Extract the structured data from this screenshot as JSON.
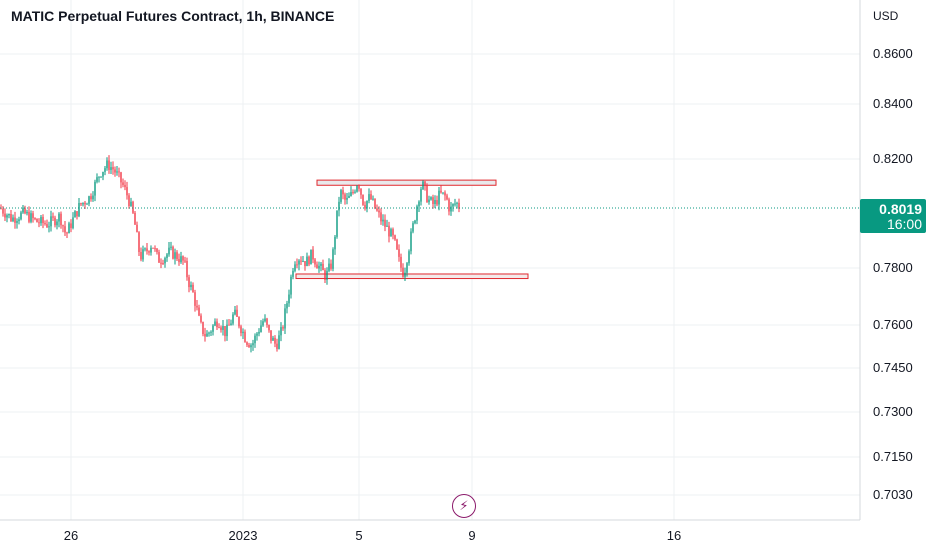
{
  "header": {
    "title": "MATIC Perpetual Futures Contract, 1h, BINANCE"
  },
  "price_scale": {
    "currency": "USD"
  },
  "last_price": {
    "value": "0.8019",
    "countdown": "16:00"
  },
  "colors": {
    "up": "#089981",
    "down": "#f23645",
    "grid": "#eef0f3",
    "price_line": "#089981",
    "box_border": "#e0282e",
    "box_fill": "#e9e9ec"
  },
  "icons": {
    "bottom": "lightning-icon"
  },
  "chart_data": {
    "type": "candlestick",
    "title": "MATIC Perpetual Futures Contract, 1h, BINANCE",
    "y_unit": "USD",
    "y_ticks": [
      0.86,
      0.84,
      0.82,
      0.78,
      0.76,
      0.745,
      0.73,
      0.715,
      0.703
    ],
    "y_tick_labels": [
      "0.8600",
      "0.8400",
      "0.8200",
      "0.7800",
      "0.7600",
      "0.7450",
      "0.7300",
      "0.7150",
      "0.7030"
    ],
    "x_tick_labels": [
      "26",
      "2023",
      "5",
      "9",
      "16"
    ],
    "grid": true,
    "last_price": 0.8019,
    "resistance_zone": [
      0.8103,
      0.8122
    ],
    "support_zone": [
      0.7763,
      0.7779
    ],
    "close_path": [
      [
        0,
        0.802
      ],
      [
        12,
        0.798
      ],
      [
        24,
        0.8
      ],
      [
        36,
        0.797
      ],
      [
        48,
        0.796
      ],
      [
        60,
        0.799
      ],
      [
        66,
        0.792
      ],
      [
        72,
        0.797
      ],
      [
        80,
        0.803
      ],
      [
        90,
        0.806
      ],
      [
        100,
        0.815
      ],
      [
        108,
        0.818
      ],
      [
        114,
        0.816
      ],
      [
        122,
        0.811
      ],
      [
        128,
        0.806
      ],
      [
        134,
        0.798
      ],
      [
        140,
        0.784
      ],
      [
        146,
        0.786
      ],
      [
        152,
        0.789
      ],
      [
        158,
        0.783
      ],
      [
        164,
        0.784
      ],
      [
        170,
        0.786
      ],
      [
        178,
        0.784
      ],
      [
        184,
        0.782
      ],
      [
        188,
        0.776
      ],
      [
        194,
        0.77
      ],
      [
        200,
        0.76
      ],
      [
        206,
        0.756
      ],
      [
        212,
        0.759
      ],
      [
        218,
        0.762
      ],
      [
        226,
        0.757
      ],
      [
        234,
        0.764
      ],
      [
        240,
        0.76
      ],
      [
        246,
        0.755
      ],
      [
        252,
        0.753
      ],
      [
        258,
        0.758
      ],
      [
        264,
        0.762
      ],
      [
        270,
        0.756
      ],
      [
        276,
        0.753
      ],
      [
        282,
        0.758
      ],
      [
        288,
        0.77
      ],
      [
        294,
        0.783
      ],
      [
        300,
        0.784
      ],
      [
        306,
        0.782
      ],
      [
        312,
        0.785
      ],
      [
        318,
        0.781
      ],
      [
        326,
        0.777
      ],
      [
        332,
        0.782
      ],
      [
        336,
        0.796
      ],
      [
        340,
        0.808
      ],
      [
        346,
        0.804
      ],
      [
        352,
        0.807
      ],
      [
        358,
        0.812
      ],
      [
        364,
        0.803
      ],
      [
        370,
        0.806
      ],
      [
        376,
        0.801
      ],
      [
        382,
        0.797
      ],
      [
        388,
        0.794
      ],
      [
        394,
        0.79
      ],
      [
        400,
        0.781
      ],
      [
        404,
        0.778
      ],
      [
        408,
        0.786
      ],
      [
        414,
        0.797
      ],
      [
        418,
        0.805
      ],
      [
        422,
        0.811
      ],
      [
        428,
        0.805
      ],
      [
        434,
        0.803
      ],
      [
        440,
        0.807
      ],
      [
        446,
        0.806
      ],
      [
        450,
        0.801
      ],
      [
        456,
        0.804
      ],
      [
        460,
        0.802
      ]
    ]
  }
}
